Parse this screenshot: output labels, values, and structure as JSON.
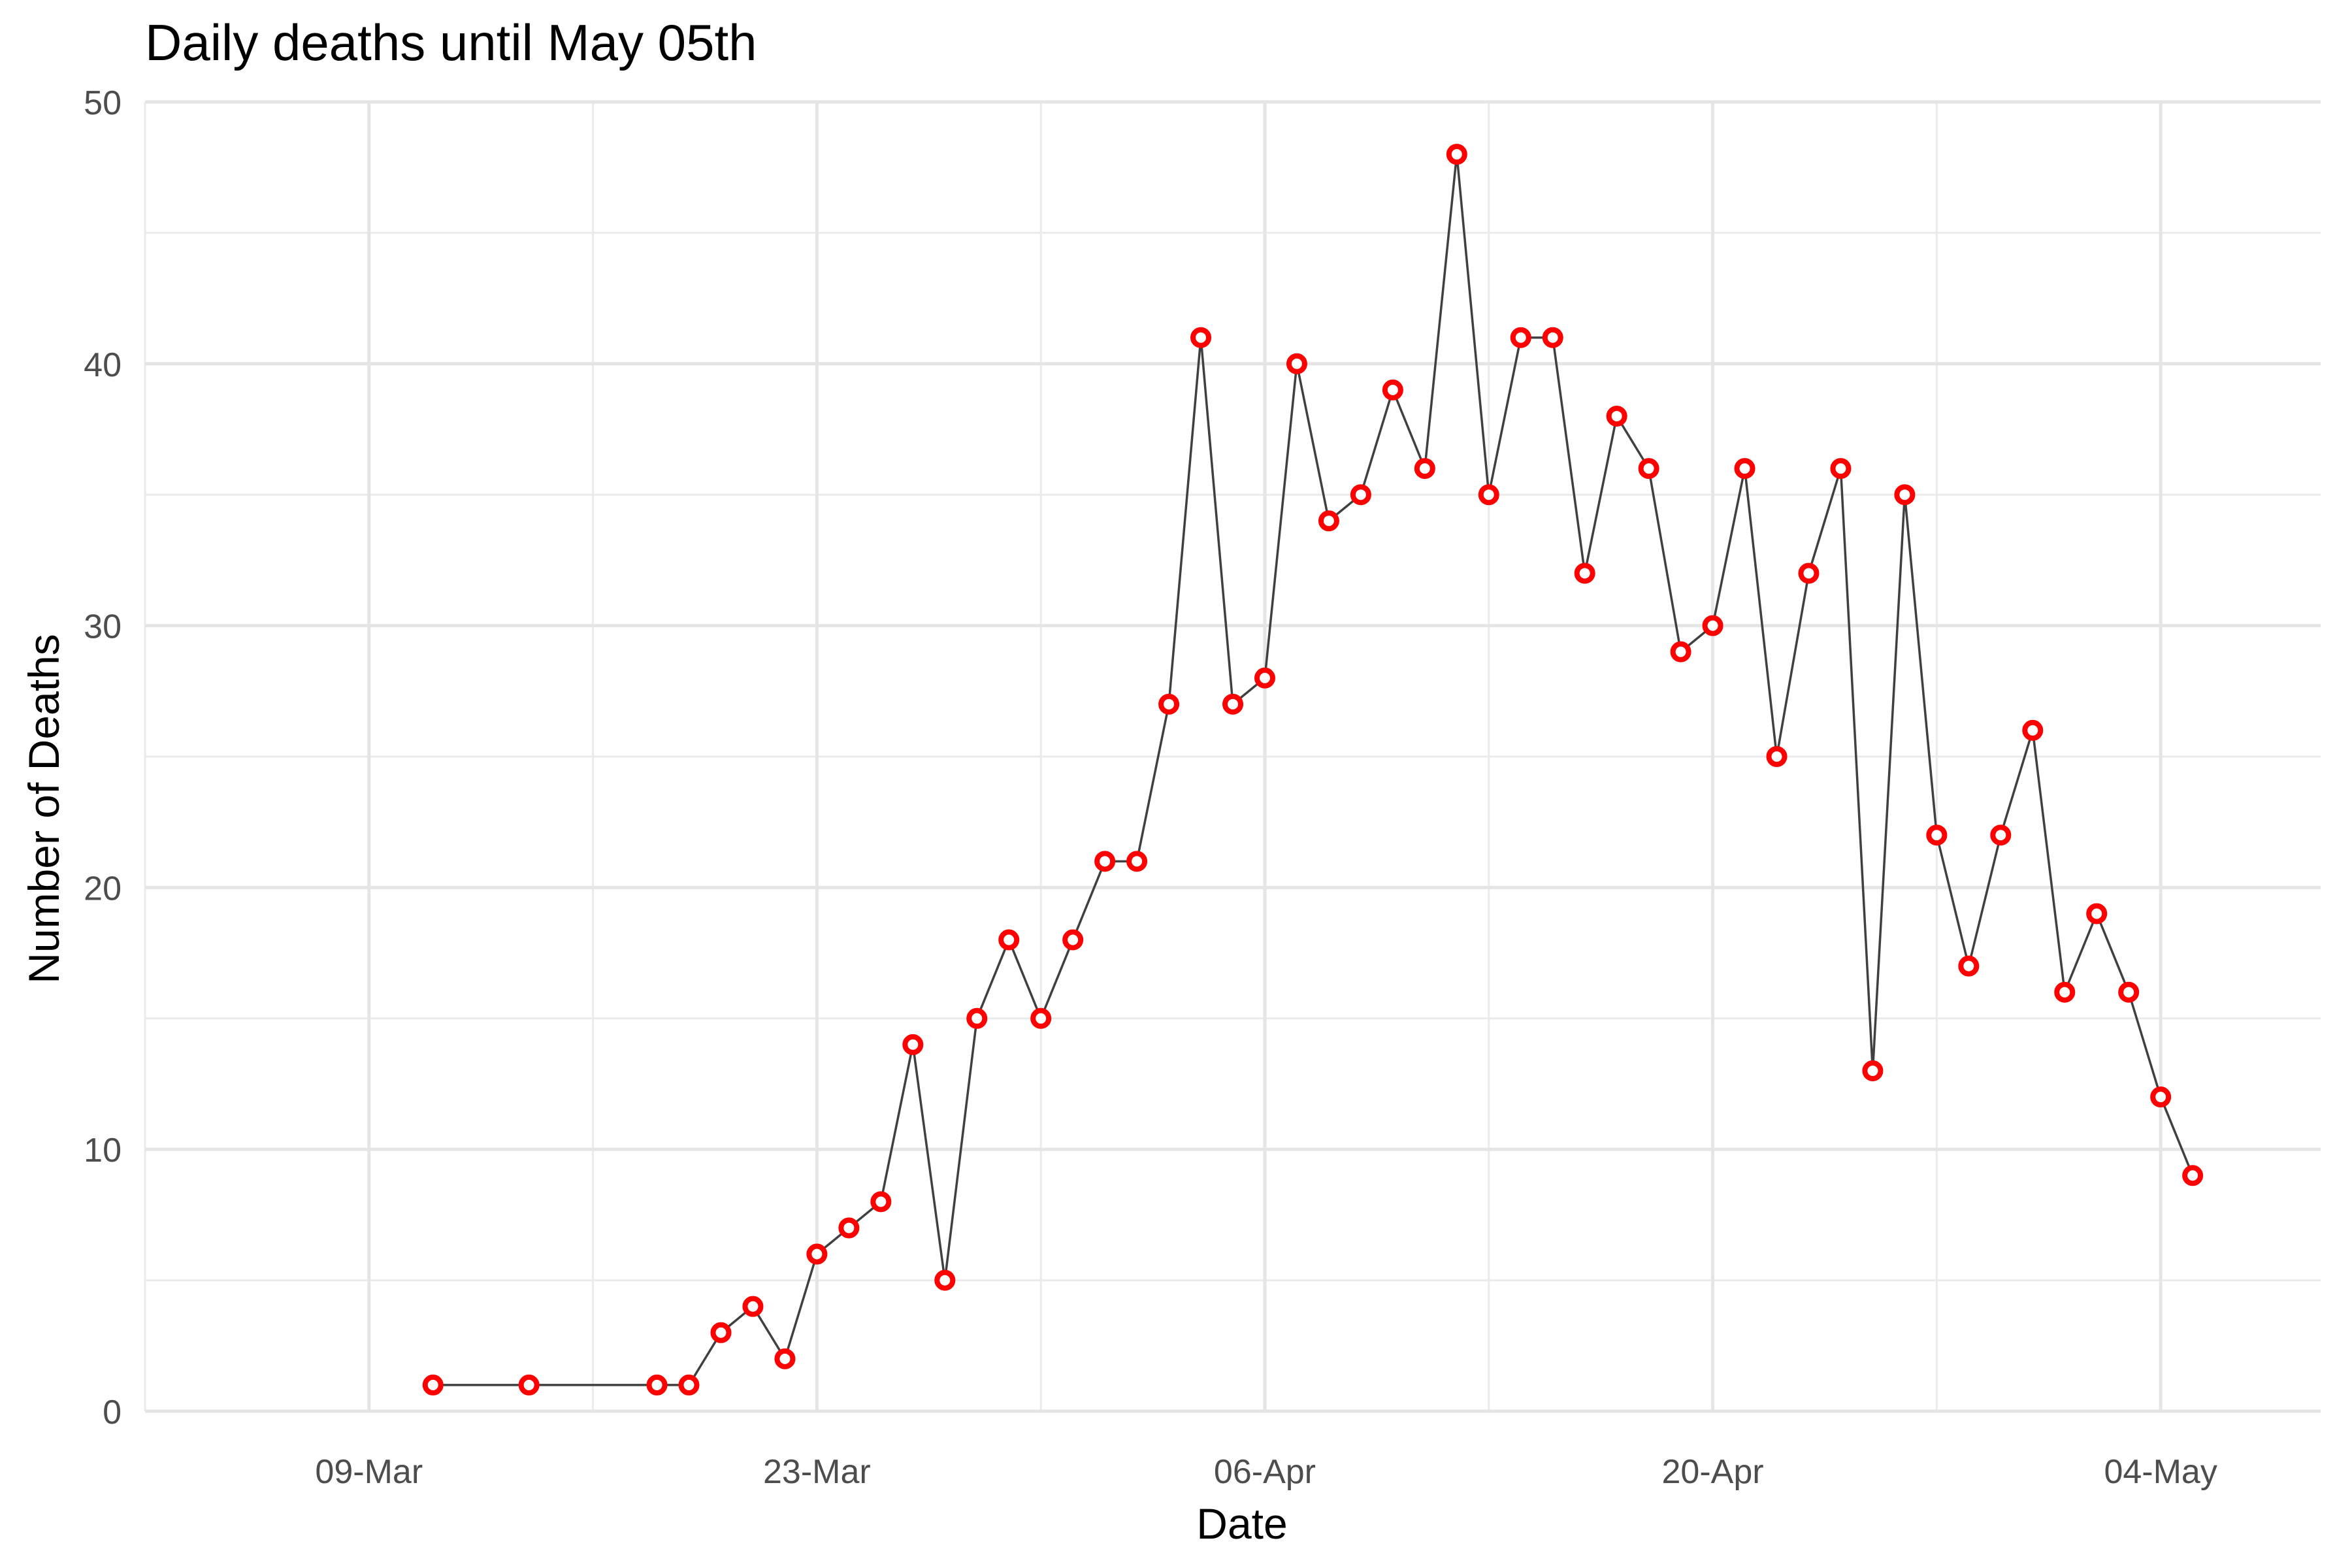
{
  "chart_data": {
    "type": "line",
    "title": "Daily deaths until May 05th",
    "xlabel": "Date",
    "ylabel": "Number of Deaths",
    "xlim": [
      "2020-03-02",
      "2020-05-09"
    ],
    "ylim": [
      0,
      50
    ],
    "x_ticks": [
      {
        "date": "2020-03-09",
        "label": "09-Mar"
      },
      {
        "date": "2020-03-23",
        "label": "23-Mar"
      },
      {
        "date": "2020-04-06",
        "label": "06-Apr"
      },
      {
        "date": "2020-04-20",
        "label": "20-Apr"
      },
      {
        "date": "2020-05-04",
        "label": "04-May"
      }
    ],
    "y_ticks": [
      0,
      10,
      20,
      30,
      40,
      50
    ],
    "grid": true,
    "line_color": "#404040",
    "point_color": "#ff0000",
    "series": [
      {
        "x": [
          "2020-03-11",
          "2020-03-14",
          "2020-03-18",
          "2020-03-19",
          "2020-03-20",
          "2020-03-21",
          "2020-03-22",
          "2020-03-23",
          "2020-03-24",
          "2020-03-25",
          "2020-03-26",
          "2020-03-27",
          "2020-03-28",
          "2020-03-29",
          "2020-03-30",
          "2020-03-31",
          "2020-04-01",
          "2020-04-02",
          "2020-04-03",
          "2020-04-04",
          "2020-04-05",
          "2020-04-06",
          "2020-04-07",
          "2020-04-08",
          "2020-04-09",
          "2020-04-10",
          "2020-04-11",
          "2020-04-12",
          "2020-04-13",
          "2020-04-14",
          "2020-04-15",
          "2020-04-16",
          "2020-04-17",
          "2020-04-18",
          "2020-04-19",
          "2020-04-20",
          "2020-04-21",
          "2020-04-22",
          "2020-04-23",
          "2020-04-24",
          "2020-04-25",
          "2020-04-26",
          "2020-04-27",
          "2020-04-28",
          "2020-04-29",
          "2020-04-30",
          "2020-05-01",
          "2020-05-02",
          "2020-05-03",
          "2020-05-04",
          "2020-05-05"
        ],
        "y": [
          1,
          1,
          1,
          1,
          3,
          4,
          2,
          6,
          7,
          8,
          14,
          5,
          15,
          18,
          15,
          18,
          21,
          21,
          27,
          41,
          27,
          28,
          40,
          34,
          35,
          39,
          36,
          48,
          35,
          41,
          41,
          32,
          38,
          36,
          29,
          30,
          36,
          25,
          32,
          36,
          13,
          35,
          22,
          17,
          22,
          26,
          16,
          19,
          16,
          12,
          9
        ]
      }
    ]
  }
}
